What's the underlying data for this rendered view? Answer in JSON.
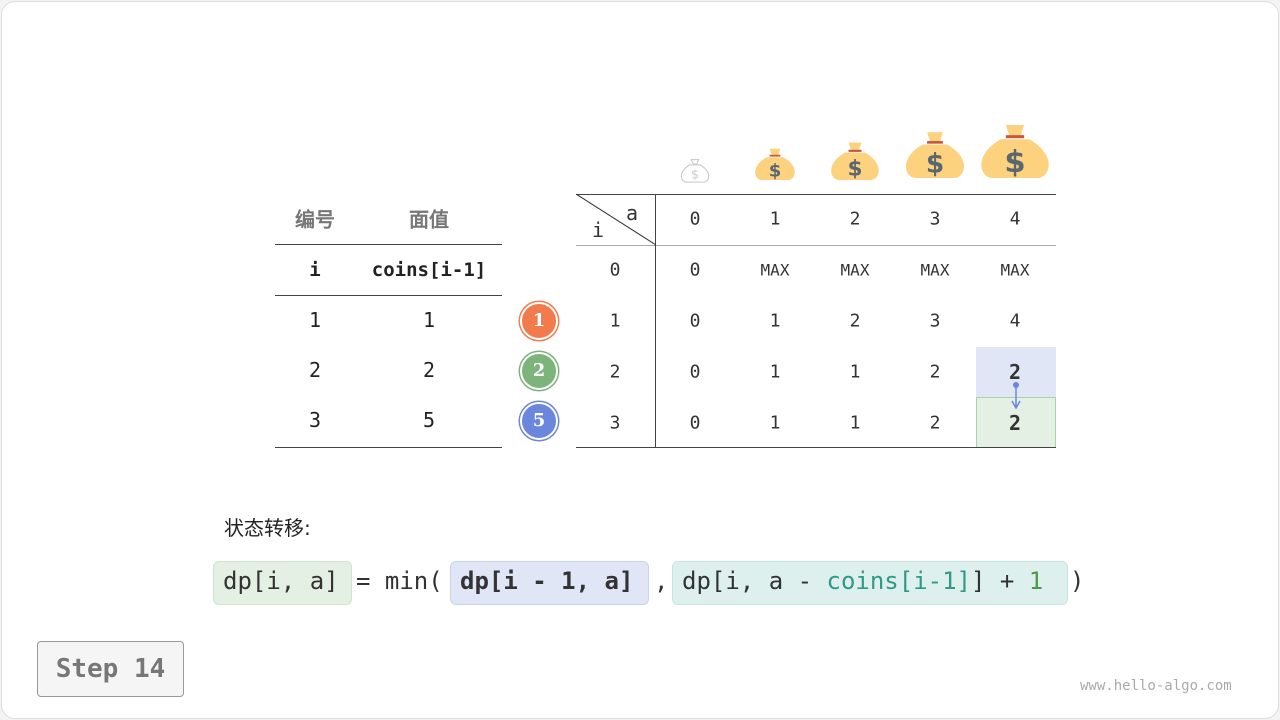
{
  "left_table": {
    "headers_cn": [
      "编号",
      "面值"
    ],
    "headers": [
      "i",
      "coins[i-1]"
    ],
    "rows": [
      [
        "1",
        "1"
      ],
      [
        "2",
        "2"
      ],
      [
        "3",
        "5"
      ]
    ]
  },
  "coins": [
    {
      "label": "1",
      "color": "#F27B4E"
    },
    {
      "label": "2",
      "color": "#7DB47C"
    },
    {
      "label": "5",
      "color": "#6B86DD"
    }
  ],
  "dp_table": {
    "corner_col": "a",
    "corner_row": "i",
    "col_headers": [
      "0",
      "1",
      "2",
      "3",
      "4"
    ],
    "row_headers": [
      "0",
      "1",
      "2",
      "3"
    ],
    "rows": [
      [
        "0",
        "MAX",
        "MAX",
        "MAX",
        "MAX"
      ],
      [
        "0",
        "1",
        "2",
        "3",
        "4"
      ],
      [
        "0",
        "1",
        "1",
        "2",
        "2"
      ],
      [
        "0",
        "1",
        "1",
        "2",
        "2"
      ]
    ],
    "highlight_source": {
      "row": 2,
      "col": 4,
      "color": "#E1E6F7"
    },
    "highlight_target": {
      "row": 3,
      "col": 4,
      "color": "#E3F0E3"
    }
  },
  "icons": [
    "money-bag-empty-icon",
    "money-bag-icon",
    "money-bag-icon",
    "money-bag-icon",
    "money-bag-icon"
  ],
  "transition_label": "状态转移:",
  "formula": {
    "lhs": "dp[i, a]",
    "eq_min": "= min(",
    "arg1": "dp[i - 1, a]",
    "comma": ",",
    "arg2_a": "dp[i, a - ",
    "arg2_coins": "coins[i-1]",
    "arg2_b": "] + ",
    "arg2_one": "1",
    "close": ")"
  },
  "step_label": "Step 14",
  "watermark": "www.hello-algo.com"
}
